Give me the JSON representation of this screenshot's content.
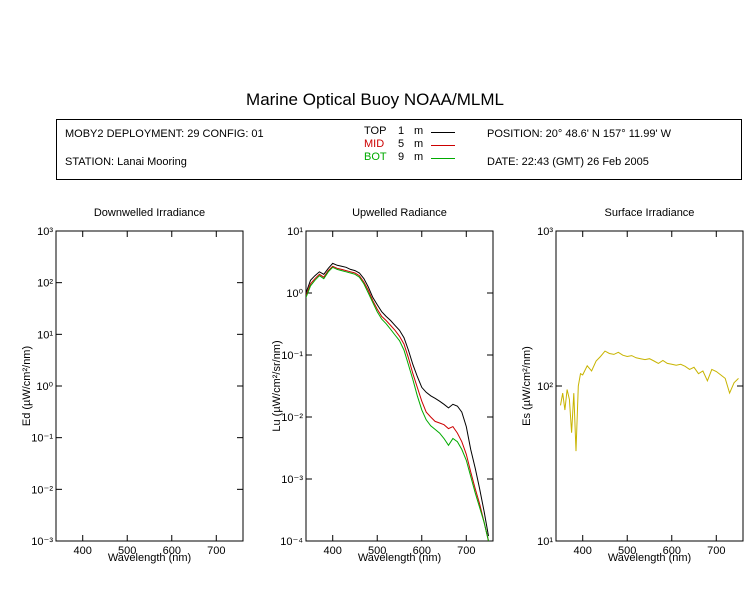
{
  "header": {
    "title": "Marine Optical Buoy NOAA/MLML",
    "deployment": "MOBY2 DEPLOYMENT: 29 CONFIG: 01",
    "station": "STATION: Lanai Mooring",
    "position": "POSITION: 20° 48.6' N   157° 11.99' W",
    "date": "DATE: 22:43 (GMT) 26 Feb 2005"
  },
  "depth_legend": [
    {
      "name": "TOP",
      "depth": "1",
      "unit": "m",
      "color": "#000000"
    },
    {
      "name": "MID",
      "depth": "5",
      "unit": "m",
      "color": "#cc0000"
    },
    {
      "name": "BOT",
      "depth": "9",
      "unit": "m",
      "color": "#00aa00"
    }
  ],
  "chart_data": [
    {
      "type": "line",
      "title": "Downwelled Irradiance",
      "xlabel": "Wavelength (nm)",
      "ylabel": "Ed  (µW/cm²/nm)",
      "xlim": [
        340,
        760
      ],
      "ylim": [
        0.001,
        1000
      ],
      "yscale": "log",
      "xticks": [
        400,
        500,
        600,
        700
      ],
      "yticks": [
        "10⁻³",
        "10⁻²",
        "10⁻¹",
        "10⁰",
        "10¹",
        "10²",
        "10³"
      ],
      "series": []
    },
    {
      "type": "line",
      "title": "Upwelled Radiance",
      "xlabel": "Wavelength (nm)",
      "ylabel": "Lu  (µW/cm²/sr/nm)",
      "xlim": [
        340,
        760
      ],
      "ylim": [
        0.0001,
        10
      ],
      "yscale": "log",
      "xticks": [
        400,
        500,
        600,
        700
      ],
      "yticks": [
        "10⁻⁴",
        "10⁻³",
        "10⁻²",
        "10⁻¹",
        "10⁰",
        "10¹"
      ],
      "series": [
        {
          "name": "TOP",
          "color": "#000000",
          "x": [
            340,
            350,
            360,
            370,
            380,
            390,
            400,
            410,
            420,
            430,
            440,
            450,
            460,
            470,
            480,
            490,
            500,
            510,
            520,
            530,
            540,
            550,
            560,
            570,
            580,
            590,
            600,
            610,
            620,
            630,
            640,
            650,
            660,
            670,
            680,
            690,
            700,
            710,
            720,
            730,
            740,
            750
          ],
          "y": [
            1.0,
            1.6,
            1.9,
            2.2,
            2.0,
            2.5,
            3.0,
            2.8,
            2.7,
            2.6,
            2.4,
            2.3,
            2.1,
            1.7,
            1.25,
            0.85,
            0.65,
            0.5,
            0.42,
            0.36,
            0.3,
            0.25,
            0.19,
            0.12,
            0.07,
            0.045,
            0.03,
            0.025,
            0.022,
            0.02,
            0.018,
            0.016,
            0.014,
            0.016,
            0.015,
            0.012,
            0.007,
            0.003,
            0.0015,
            0.0007,
            0.0003,
            0.00012
          ]
        },
        {
          "name": "MID",
          "color": "#cc0000",
          "x": [
            340,
            350,
            360,
            370,
            380,
            390,
            400,
            410,
            420,
            430,
            440,
            450,
            460,
            470,
            480,
            490,
            500,
            510,
            520,
            530,
            540,
            550,
            560,
            570,
            580,
            590,
            600,
            610,
            620,
            630,
            640,
            650,
            660,
            670,
            680,
            690,
            700,
            710,
            720,
            730,
            740,
            750
          ],
          "y": [
            0.9,
            1.4,
            1.7,
            2.0,
            1.8,
            2.3,
            2.7,
            2.5,
            2.4,
            2.3,
            2.2,
            2.1,
            1.9,
            1.5,
            1.1,
            0.75,
            0.55,
            0.42,
            0.36,
            0.3,
            0.25,
            0.2,
            0.15,
            0.09,
            0.05,
            0.03,
            0.018,
            0.012,
            0.01,
            0.0085,
            0.008,
            0.0075,
            0.0065,
            0.007,
            0.0055,
            0.004,
            0.0025,
            0.0013,
            0.0007,
            0.0004,
            0.0002,
            0.0001
          ]
        },
        {
          "name": "BOT",
          "color": "#00aa00",
          "x": [
            340,
            350,
            360,
            370,
            380,
            390,
            400,
            410,
            420,
            430,
            440,
            450,
            460,
            470,
            480,
            490,
            500,
            510,
            520,
            530,
            540,
            550,
            560,
            570,
            580,
            590,
            600,
            610,
            620,
            630,
            640,
            650,
            660,
            670,
            680,
            690,
            700,
            710,
            720,
            730,
            740,
            750
          ],
          "y": [
            0.85,
            1.3,
            1.6,
            1.9,
            1.7,
            2.2,
            2.6,
            2.4,
            2.3,
            2.2,
            2.1,
            2.0,
            1.8,
            1.4,
            1.0,
            0.7,
            0.5,
            0.38,
            0.32,
            0.26,
            0.21,
            0.17,
            0.12,
            0.07,
            0.04,
            0.022,
            0.013,
            0.009,
            0.0072,
            0.0063,
            0.0055,
            0.0045,
            0.0035,
            0.0045,
            0.004,
            0.003,
            0.002,
            0.0011,
            0.0006,
            0.00035,
            0.0002,
            0.0001
          ]
        }
      ]
    },
    {
      "type": "line",
      "title": "Surface Irradiance",
      "xlabel": "Wavelength (nm)",
      "ylabel": "Es  (µW/cm²/nm)",
      "xlim": [
        340,
        760
      ],
      "ylim": [
        10,
        1000
      ],
      "yscale": "log",
      "xticks": [
        400,
        500,
        600,
        700
      ],
      "yticks": [
        "10¹",
        "10²",
        "10³"
      ],
      "series": [
        {
          "color": "#c8b400",
          "x": [
            350,
            355,
            360,
            365,
            370,
            375,
            380,
            385,
            390,
            395,
            400,
            410,
            420,
            430,
            440,
            450,
            460,
            470,
            480,
            490,
            500,
            510,
            520,
            530,
            540,
            550,
            560,
            570,
            580,
            590,
            600,
            610,
            620,
            630,
            640,
            650,
            660,
            670,
            680,
            690,
            700,
            710,
            720,
            730,
            740,
            750
          ],
          "y": [
            75,
            90,
            70,
            95,
            82,
            50,
            90,
            38,
            100,
            120,
            118,
            135,
            125,
            145,
            155,
            168,
            162,
            160,
            165,
            158,
            155,
            157,
            152,
            150,
            148,
            150,
            145,
            140,
            146,
            140,
            138,
            136,
            138,
            134,
            128,
            132,
            120,
            125,
            108,
            128,
            124,
            118,
            112,
            90,
            105,
            112
          ]
        }
      ]
    }
  ]
}
